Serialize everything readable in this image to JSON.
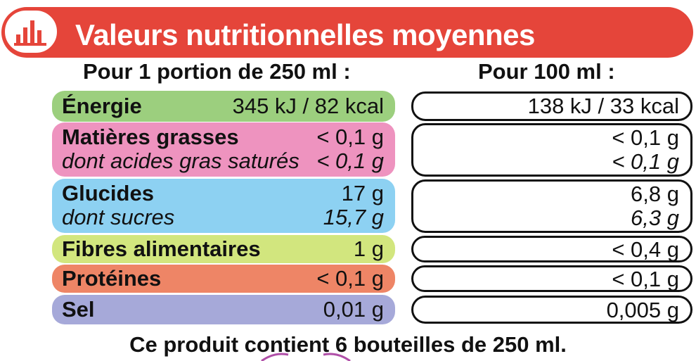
{
  "header": {
    "title": "Valeurs nutritionnelles moyennes",
    "logo_icon": "bar-chart-icon",
    "accent_color": "#e5453a"
  },
  "columns": {
    "portion_header": "Pour 1 portion de 250 ml :",
    "per100_header": "Pour 100 ml :"
  },
  "rows": [
    {
      "color": "#9ccf7e",
      "lines": [
        {
          "label": "Énergie",
          "portion": "345 kJ / 82 kcal",
          "per100": "138 kJ / 33 kcal"
        }
      ]
    },
    {
      "color": "#ee93bf",
      "lines": [
        {
          "label": "Matières grasses",
          "portion": "< 0,1 g",
          "per100": "< 0,1 g"
        },
        {
          "label": "dont acides gras saturés",
          "portion": "< 0,1 g",
          "per100": "< 0,1 g"
        }
      ]
    },
    {
      "color": "#8dd1f2",
      "lines": [
        {
          "label": "Glucides",
          "portion": "17 g",
          "per100": "6,8 g"
        },
        {
          "label": "dont sucres",
          "portion": "15,7 g",
          "per100": "6,3 g"
        }
      ]
    },
    {
      "color": "#d2e67e",
      "lines": [
        {
          "label": "Fibres alimentaires",
          "portion": "1 g",
          "per100": "< 0,4 g"
        }
      ]
    },
    {
      "color": "#ee8566",
      "lines": [
        {
          "label": "Protéines",
          "portion": "< 0,1 g",
          "per100": "< 0,1 g"
        }
      ]
    },
    {
      "color": "#a6a9d9",
      "lines": [
        {
          "label": "Sel",
          "portion": "0,01 g",
          "per100": "0,005 g"
        }
      ]
    }
  ],
  "footer": "Ce produit contient 6 bouteilles de 250 ml."
}
